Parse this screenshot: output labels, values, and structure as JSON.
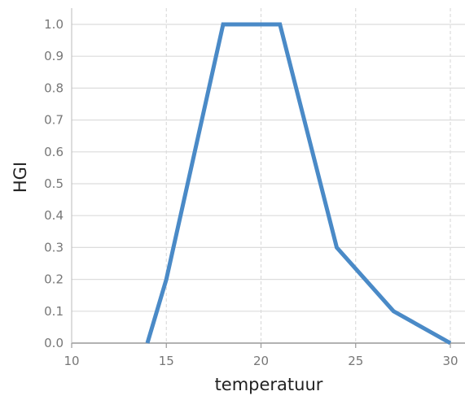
{
  "chart_data": {
    "type": "line",
    "title": "",
    "xlabel": "temperatuur",
    "ylabel": "HGI",
    "xlim": [
      10,
      30
    ],
    "ylim": [
      0,
      1.0
    ],
    "x_ticks": [
      "10",
      "15",
      "20",
      "25",
      "30"
    ],
    "y_ticks": [
      "0.0",
      "0.1",
      "0.2",
      "0.3",
      "0.4",
      "0.5",
      "0.6",
      "0.7",
      "0.8",
      "0.9",
      "1.0"
    ],
    "grid": true,
    "series": [
      {
        "x": [
          14,
          15,
          18,
          21,
          24,
          27,
          30
        ],
        "y": [
          0.0,
          0.2,
          1.0,
          1.0,
          0.3,
          0.1,
          0.0
        ],
        "color": "#4a8ac7"
      }
    ]
  }
}
